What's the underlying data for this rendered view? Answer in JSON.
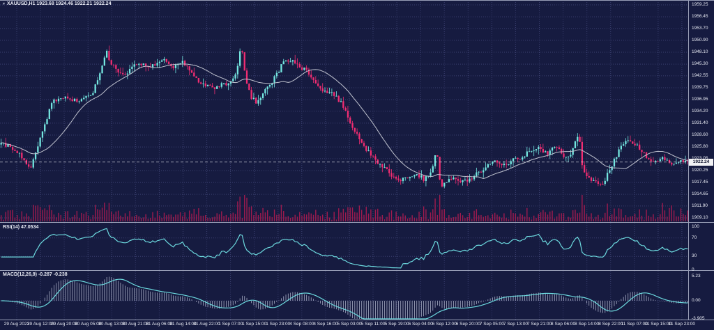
{
  "header": {
    "title_text": "XAUUSD,H1 1923.68 1924.46 1922.21 1922.24",
    "collapse_icon": "▾"
  },
  "colors": {
    "background": "#161b40",
    "grid": "#3b4070",
    "candle_up": "#74e6e0",
    "candle_down": "#f12d72",
    "ma_line": "#c0c3cf",
    "volume": "#9e1b4e",
    "indicator_line": "#6cd9de",
    "macd_histogram": "#a9aec6",
    "separator": "#9aa0b8",
    "axis_text": "#e9ebf4",
    "price_tag_bg": "#f2f2f4",
    "price_tag_text": "#10142e",
    "current_price_line": "#e3e4ea"
  },
  "chart_data": [
    {
      "type": "candlestick",
      "name": "XAUUSD price pane",
      "symbol": "XAUUSD",
      "timeframe": "H1",
      "ohlc": {
        "open": "1923.68",
        "high": "1924.46",
        "low": "1922.21",
        "close": "1922.24"
      },
      "current_price_label": "1922.24",
      "bars": 300,
      "y_axis": {
        "tick_labels": [
          "1959.25",
          "1956.45",
          "1953.70",
          "1950.90",
          "1948.10",
          "1945.30",
          "1942.55",
          "1939.75",
          "1936.95",
          "1934.20",
          "1931.40",
          "1928.60",
          "1925.80",
          "1923.05",
          "1920.25",
          "1917.45",
          "1914.65",
          "1911.90",
          "1909.10"
        ]
      },
      "x_axis": {
        "tick_labels": [
          "29 Aug 2023",
          "29 Aug 12:00",
          "29 Aug 20:00",
          "30 Aug 05:00",
          "30 Aug 13:00",
          "30 Aug 21:00",
          "31 Aug 06:00",
          "31 Aug 14:00",
          "31 Aug 22:00",
          "1 Sep 07:00",
          "1 Sep 15:00",
          "1 Sep 23:00",
          "4 Sep 08:00",
          "4 Sep 16:00",
          "5 Sep 03:00",
          "5 Sep 11:00",
          "5 Sep 19:00",
          "6 Sep 04:00",
          "6 Sep 12:00",
          "6 Sep 20:00",
          "7 Sep 05:00",
          "7 Sep 13:00",
          "7 Sep 21:00",
          "8 Sep 06:00",
          "8 Sep 14:00",
          "8 Sep 22:00",
          "11 Sep 07:00",
          "11 Sep 15:00",
          "11 Sep 23:00"
        ]
      },
      "overlays": [
        {
          "name": "moving-average",
          "period": 20
        },
        {
          "name": "tick-volume"
        }
      ],
      "price_keypoints": [
        [
          0,
          1926.8
        ],
        [
          18,
          1925.6
        ],
        [
          30,
          1924.0
        ],
        [
          44,
          1920.5
        ],
        [
          52,
          1924.5
        ],
        [
          62,
          1930.0
        ],
        [
          74,
          1936.0
        ],
        [
          86,
          1937.8
        ],
        [
          98,
          1937.2
        ],
        [
          110,
          1936.5
        ],
        [
          122,
          1937.5
        ],
        [
          134,
          1939.0
        ],
        [
          144,
          1943.5
        ],
        [
          152,
          1948.5
        ],
        [
          158,
          1946.0
        ],
        [
          166,
          1944.0
        ],
        [
          176,
          1942.5
        ],
        [
          188,
          1944.5
        ],
        [
          200,
          1945.5
        ],
        [
          212,
          1944.8
        ],
        [
          224,
          1945.2
        ],
        [
          236,
          1946.5
        ],
        [
          248,
          1944.8
        ],
        [
          260,
          1946.2
        ],
        [
          272,
          1944.0
        ],
        [
          284,
          1941.5
        ],
        [
          296,
          1940.2
        ],
        [
          308,
          1939.6
        ],
        [
          320,
          1940.6
        ],
        [
          332,
          1941.2
        ],
        [
          342,
          1945.0
        ],
        [
          346,
          1950.5
        ],
        [
          352,
          1942.0
        ],
        [
          360,
          1937.5
        ],
        [
          368,
          1936.2
        ],
        [
          378,
          1939.0
        ],
        [
          388,
          1940.8
        ],
        [
          398,
          1943.0
        ],
        [
          408,
          1946.8
        ],
        [
          418,
          1946.0
        ],
        [
          430,
          1944.8
        ],
        [
          442,
          1943.2
        ],
        [
          452,
          1940.5
        ],
        [
          464,
          1938.8
        ],
        [
          476,
          1938.2
        ],
        [
          488,
          1936.5
        ],
        [
          500,
          1932.5
        ],
        [
          512,
          1928.5
        ],
        [
          524,
          1925.5
        ],
        [
          536,
          1923.0
        ],
        [
          548,
          1921.5
        ],
        [
          560,
          1919.0
        ],
        [
          572,
          1917.8
        ],
        [
          584,
          1918.5
        ],
        [
          596,
          1919.5
        ],
        [
          608,
          1918.2
        ],
        [
          620,
          1920.5
        ],
        [
          626,
          1926.0
        ],
        [
          632,
          1915.8
        ],
        [
          640,
          1917.5
        ],
        [
          652,
          1918.8
        ],
        [
          664,
          1917.6
        ],
        [
          676,
          1918.2
        ],
        [
          688,
          1920.0
        ],
        [
          700,
          1921.5
        ],
        [
          712,
          1922.3
        ],
        [
          724,
          1921.4
        ],
        [
          736,
          1922.8
        ],
        [
          748,
          1923.5
        ],
        [
          760,
          1924.6
        ],
        [
          772,
          1925.4
        ],
        [
          784,
          1924.2
        ],
        [
          796,
          1925.6
        ],
        [
          808,
          1924.0
        ],
        [
          818,
          1923.2
        ],
        [
          824,
          1926.5
        ],
        [
          830,
          1928.8
        ],
        [
          836,
          1920.5
        ],
        [
          846,
          1918.5
        ],
        [
          856,
          1917.5
        ],
        [
          864,
          1916.8
        ],
        [
          872,
          1919.5
        ],
        [
          882,
          1923.0
        ],
        [
          894,
          1926.8
        ],
        [
          904,
          1927.6
        ],
        [
          914,
          1925.8
        ],
        [
          926,
          1923.8
        ],
        [
          938,
          1922.2
        ],
        [
          948,
          1923.6
        ],
        [
          960,
          1921.8
        ],
        [
          972,
          1922.8
        ],
        [
          988,
          1922.2
        ]
      ]
    },
    {
      "type": "line",
      "name": "RSI pane",
      "label": "RSI(14) 47.0534",
      "period": 14,
      "last_value": "47.0534",
      "levels": [
        70,
        30
      ],
      "range": [
        0,
        100
      ],
      "scale_labels": [
        "100",
        "70",
        "30",
        "0"
      ]
    },
    {
      "type": "bar",
      "name": "MACD pane",
      "label": "MACD(12,26,9) -0.287 -0.238",
      "params": [
        12,
        26,
        9
      ],
      "last_values": [
        "-0.287",
        "-0.238"
      ],
      "scale_labels": [
        "5.23",
        "0.00",
        "-3.905"
      ],
      "scale_max": 5.23,
      "scale_min": -3.905
    }
  ]
}
